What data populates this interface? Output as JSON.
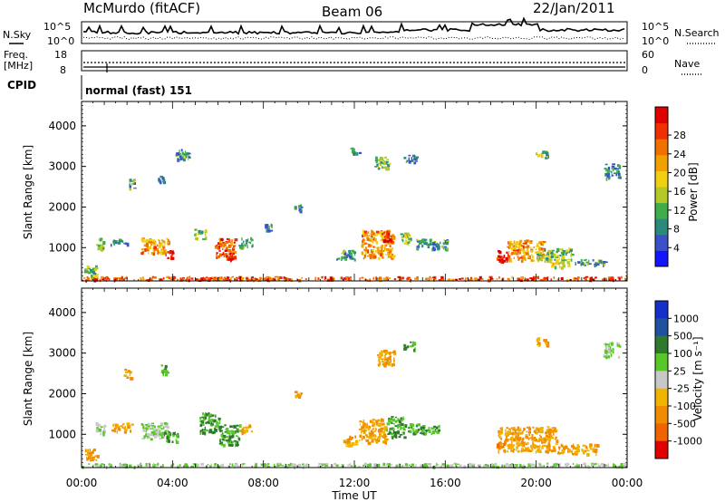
{
  "header": {
    "station": "McMurdo (fitACF)",
    "beam": "Beam 06",
    "date": "22/Jan/2011"
  },
  "top_panels": {
    "nsky_label": "N.Sky",
    "nsearch_label": "N.Search",
    "noise_ticks": [
      "10^5",
      "10^0"
    ],
    "freq_label_1": "Freq.",
    "freq_label_2": "[MHz]",
    "freq_ticks": [
      "18",
      "8"
    ],
    "nave_label": "Nave",
    "nave_ticks": [
      "60",
      "0"
    ],
    "cpid_label": "CPID",
    "cpid_value": "normal (fast) 151"
  },
  "chart_data": [
    {
      "type": "heatmap",
      "panel": "power",
      "xlabel": "",
      "ylabel": "Slant Range [km]",
      "x_ticks": [
        "00:00",
        "04:00",
        "08:00",
        "12:00",
        "16:00",
        "20:00",
        "00:00"
      ],
      "x_range_hours": [
        0,
        24
      ],
      "y_ticks": [
        1000,
        2000,
        3000,
        4000
      ],
      "y_range_km": [
        180,
        4600
      ],
      "colorbar": {
        "label": "Power [dB]",
        "ticks": [
          "4",
          "8",
          "12",
          "16",
          "20",
          "24",
          "28"
        ],
        "colors": [
          "#1414ff",
          "#3c50c8",
          "#2a8a7c",
          "#3fae4a",
          "#b4c828",
          "#f0d010",
          "#f0a000",
          "#f07000",
          "#f03000",
          "#e00000"
        ]
      },
      "patches": [
        {
          "t": 0.8,
          "r": 1100,
          "value": 12,
          "dt": 0.4,
          "dr": 300
        },
        {
          "t": 1.6,
          "r": 1150,
          "value": 8,
          "dt": 0.8,
          "dr": 150
        },
        {
          "t": 3.2,
          "r": 1050,
          "value": 20,
          "dt": 1.2,
          "dr": 400
        },
        {
          "t": 3.8,
          "r": 850,
          "value": 28,
          "dt": 0.4,
          "dr": 200
        },
        {
          "t": 5.2,
          "r": 1350,
          "value": 12,
          "dt": 0.5,
          "dr": 250
        },
        {
          "t": 6.3,
          "r": 1000,
          "value": 24,
          "dt": 0.9,
          "dr": 500
        },
        {
          "t": 6.5,
          "r": 800,
          "value": 28,
          "dt": 0.3,
          "dr": 150
        },
        {
          "t": 7.2,
          "r": 1150,
          "value": 8,
          "dt": 0.6,
          "dr": 250
        },
        {
          "t": 11.6,
          "r": 850,
          "value": 8,
          "dt": 0.8,
          "dr": 250
        },
        {
          "t": 13.0,
          "r": 1100,
          "value": 20,
          "dt": 1.4,
          "dr": 700
        },
        {
          "t": 13.4,
          "r": 1300,
          "value": 28,
          "dt": 0.4,
          "dr": 250
        },
        {
          "t": 14.2,
          "r": 1250,
          "value": 12,
          "dt": 0.5,
          "dr": 250
        },
        {
          "t": 15.4,
          "r": 1100,
          "value": 8,
          "dt": 1.4,
          "dr": 250
        },
        {
          "t": 13.2,
          "r": 3100,
          "value": 12,
          "dt": 0.7,
          "dr": 300
        },
        {
          "t": 14.4,
          "r": 3200,
          "value": 8,
          "dt": 0.6,
          "dr": 200
        },
        {
          "t": 12.0,
          "r": 3400,
          "value": 8,
          "dt": 0.4,
          "dr": 150
        },
        {
          "t": 18.5,
          "r": 800,
          "value": 28,
          "dt": 0.6,
          "dr": 300
        },
        {
          "t": 19.5,
          "r": 950,
          "value": 20,
          "dt": 1.6,
          "dr": 500
        },
        {
          "t": 20.8,
          "r": 850,
          "value": 12,
          "dt": 1.6,
          "dr": 300
        },
        {
          "t": 22.4,
          "r": 650,
          "value": 8,
          "dt": 1.4,
          "dr": 150
        },
        {
          "t": 21.0,
          "r": 600,
          "value": 16,
          "dt": 0.8,
          "dr": 150
        },
        {
          "t": 23.3,
          "r": 2900,
          "value": 8,
          "dt": 0.7,
          "dr": 350
        },
        {
          "t": 20.2,
          "r": 3300,
          "value": 12,
          "dt": 0.5,
          "dr": 200
        },
        {
          "t": 4.4,
          "r": 3300,
          "value": 8,
          "dt": 0.6,
          "dr": 300
        },
        {
          "t": 3.5,
          "r": 2700,
          "value": 8,
          "dt": 0.3,
          "dr": 200
        },
        {
          "t": 2.2,
          "r": 2600,
          "value": 8,
          "dt": 0.3,
          "dr": 250
        },
        {
          "t": 8.2,
          "r": 1500,
          "value": 8,
          "dt": 0.3,
          "dr": 200
        },
        {
          "t": 9.5,
          "r": 2000,
          "value": 8,
          "dt": 0.3,
          "dr": 150
        },
        {
          "t": 12.0,
          "r": 260,
          "value": 24,
          "dt": 24.0,
          "dr": 80
        },
        {
          "t": 0.4,
          "r": 450,
          "value": 12,
          "dt": 0.6,
          "dr": 250
        }
      ]
    },
    {
      "type": "heatmap",
      "panel": "velocity",
      "xlabel": "Time UT",
      "ylabel": "Slant Range [km]",
      "x_ticks": [
        "00:00",
        "04:00",
        "08:00",
        "12:00",
        "16:00",
        "20:00",
        "00:00"
      ],
      "x_range_hours": [
        0,
        24
      ],
      "y_ticks": [
        1000,
        2000,
        3000,
        4000
      ],
      "y_range_km": [
        180,
        4600
      ],
      "colorbar": {
        "label": "Velocity [m s⁻¹]",
        "ticks": [
          "1000",
          "500",
          "100",
          "25",
          "-25",
          "-100",
          "-500",
          "-1000"
        ],
        "colors": [
          "#1430c8",
          "#2050a0",
          "#2d7a2d",
          "#58c828",
          "#c8c8c8",
          "#f0b400",
          "#f08c00",
          "#f06400",
          "#e00000"
        ]
      },
      "patches": [
        {
          "t": 0.8,
          "r": 1150,
          "value": 25,
          "dt": 0.4,
          "dr": 300
        },
        {
          "t": 1.8,
          "r": 1200,
          "value": -100,
          "dt": 1.0,
          "dr": 200
        },
        {
          "t": 3.2,
          "r": 1100,
          "value": 25,
          "dt": 1.2,
          "dr": 400
        },
        {
          "t": 3.9,
          "r": 950,
          "value": 100,
          "dt": 0.6,
          "dr": 250
        },
        {
          "t": 5.6,
          "r": 1300,
          "value": 100,
          "dt": 0.9,
          "dr": 500
        },
        {
          "t": 6.5,
          "r": 1000,
          "value": 100,
          "dt": 0.9,
          "dr": 500
        },
        {
          "t": 7.2,
          "r": 1150,
          "value": -100,
          "dt": 0.5,
          "dr": 200
        },
        {
          "t": 11.8,
          "r": 850,
          "value": -100,
          "dt": 0.6,
          "dr": 250
        },
        {
          "t": 12.8,
          "r": 1100,
          "value": -100,
          "dt": 1.2,
          "dr": 600
        },
        {
          "t": 13.8,
          "r": 1200,
          "value": 100,
          "dt": 0.8,
          "dr": 500
        },
        {
          "t": 15.0,
          "r": 1150,
          "value": 100,
          "dt": 1.4,
          "dr": 250
        },
        {
          "t": 13.4,
          "r": 2900,
          "value": -100,
          "dt": 0.8,
          "dr": 400
        },
        {
          "t": 14.4,
          "r": 3200,
          "value": 100,
          "dt": 0.5,
          "dr": 200
        },
        {
          "t": 19.6,
          "r": 900,
          "value": -100,
          "dt": 2.6,
          "dr": 600
        },
        {
          "t": 21.8,
          "r": 650,
          "value": -100,
          "dt": 1.8,
          "dr": 250
        },
        {
          "t": 18.4,
          "r": 700,
          "value": -500,
          "dt": 0.4,
          "dr": 200
        },
        {
          "t": 23.3,
          "r": 3100,
          "value": 25,
          "dt": 0.7,
          "dr": 350
        },
        {
          "t": 20.2,
          "r": 3300,
          "value": -100,
          "dt": 0.5,
          "dr": 200
        },
        {
          "t": 3.6,
          "r": 2600,
          "value": 100,
          "dt": 0.3,
          "dr": 250
        },
        {
          "t": 9.5,
          "r": 2000,
          "value": -100,
          "dt": 0.3,
          "dr": 150
        },
        {
          "t": 2.0,
          "r": 2500,
          "value": -100,
          "dt": 0.3,
          "dr": 250
        },
        {
          "t": 12.0,
          "r": 260,
          "value": 25,
          "dt": 24.0,
          "dr": 80
        },
        {
          "t": 0.4,
          "r": 500,
          "value": -100,
          "dt": 0.6,
          "dr": 300
        }
      ]
    }
  ]
}
